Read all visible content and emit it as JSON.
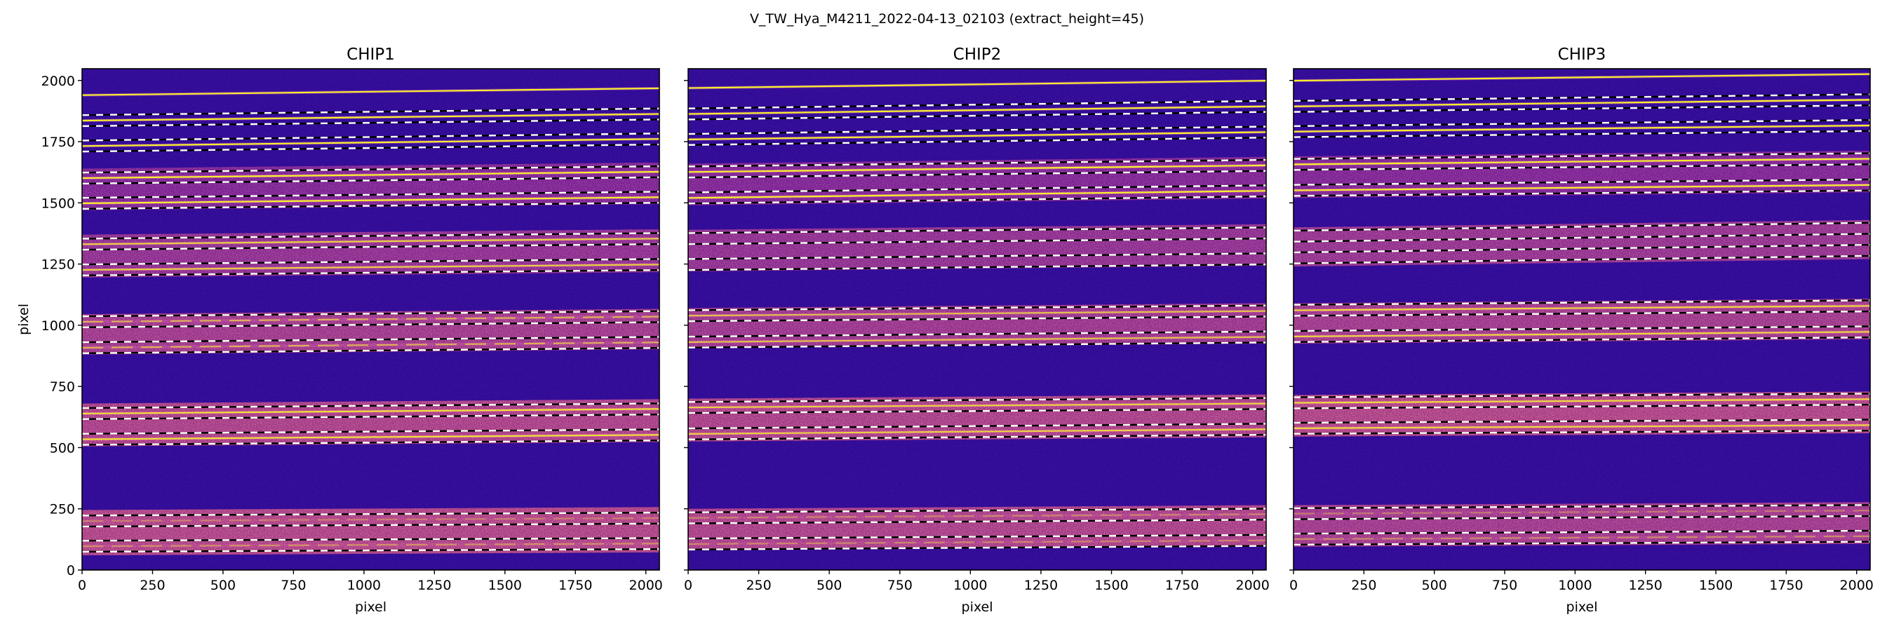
{
  "suptitle": "V_TW_Hya_M4211_2022-04-13_02103  (extract_height=45)",
  "chart_data": [
    {
      "type": "heatmap",
      "title": "CHIP1",
      "xlabel": "pixel",
      "ylabel": "pixel",
      "xlim": [
        0,
        2048
      ],
      "ylim": [
        0,
        2048
      ],
      "xticks": [
        0,
        250,
        500,
        750,
        1000,
        1250,
        1500,
        1750,
        2000
      ],
      "yticks": [
        0,
        250,
        500,
        750,
        1000,
        1250,
        1500,
        1750,
        2000
      ],
      "extract_height": 45,
      "colormap": "plasma",
      "illuminated_bands": [
        {
          "y_left": [
            1470,
            1640
          ],
          "y_right": [
            1495,
            1665
          ],
          "level": 0.3
        },
        {
          "y_left": [
            1195,
            1370
          ],
          "y_right": [
            1217,
            1392
          ],
          "level": 0.45
        },
        {
          "y_left": [
            880,
            1045
          ],
          "y_right": [
            902,
            1067
          ],
          "level": 0.6
        },
        {
          "y_left": [
            505,
            680
          ],
          "y_right": [
            523,
            698
          ],
          "level": 0.7
        },
        {
          "y_left": [
            60,
            245
          ],
          "y_right": [
            72,
            257
          ],
          "level": 0.75
        }
      ],
      "traces": [
        {
          "y_left": 1940,
          "y_right": 1968,
          "brightness": 1.0,
          "extraction_limits": false
        },
        {
          "y_left": 1836,
          "y_right": 1863,
          "brightness": 1.0,
          "extraction_limits": true
        },
        {
          "y_left": 1732,
          "y_right": 1761,
          "brightness": 1.0,
          "extraction_limits": true
        },
        {
          "y_left": 1601,
          "y_right": 1627,
          "brightness": 1.0,
          "extraction_limits": true
        },
        {
          "y_left": 1498,
          "y_right": 1523,
          "brightness": 1.0,
          "extraction_limits": true
        },
        {
          "y_left": 1331,
          "y_right": 1354,
          "brightness": 0.8,
          "extraction_limits": true
        },
        {
          "y_left": 1226,
          "y_right": 1248,
          "brightness": 0.8,
          "extraction_limits": true
        },
        {
          "y_left": 1014,
          "y_right": 1035,
          "brightness": 0.6,
          "extraction_limits": true
        },
        {
          "y_left": 908,
          "y_right": 930,
          "brightness": 0.6,
          "extraction_limits": true
        },
        {
          "y_left": 639,
          "y_right": 658,
          "brightness": 0.9,
          "extraction_limits": true
        },
        {
          "y_left": 534,
          "y_right": 552,
          "brightness": 0.9,
          "extraction_limits": true
        },
        {
          "y_left": 200,
          "y_right": 212,
          "brightness": 0.3,
          "extraction_limits": true
        },
        {
          "y_left": 97,
          "y_right": 108,
          "brightness": 0.4,
          "extraction_limits": true
        }
      ]
    },
    {
      "type": "heatmap",
      "title": "CHIP2",
      "xlabel": "pixel",
      "ylabel": "",
      "xlim": [
        0,
        2048
      ],
      "ylim": [
        0,
        2048
      ],
      "xticks": [
        0,
        250,
        500,
        750,
        1000,
        1250,
        1500,
        1750,
        2000
      ],
      "yticks": [
        0,
        250,
        500,
        750,
        1000,
        1250,
        1500,
        1750,
        2000
      ],
      "extract_height": 45,
      "colormap": "plasma",
      "illuminated_bands": [
        {
          "y_left": [
            1490,
            1660
          ],
          "y_right": [
            1518,
            1688
          ],
          "level": 0.3
        },
        {
          "y_left": [
            1220,
            1390
          ],
          "y_right": [
            1243,
            1413
          ],
          "level": 0.45
        },
        {
          "y_left": [
            905,
            1070
          ],
          "y_right": [
            925,
            1090
          ],
          "level": 0.55
        },
        {
          "y_left": [
            525,
            700
          ],
          "y_right": [
            542,
            717
          ],
          "level": 0.7
        },
        {
          "y_left": [
            80,
            250
          ],
          "y_right": [
            95,
            265
          ],
          "level": 0.7
        }
      ],
      "traces": [
        {
          "y_left": 1969,
          "y_right": 1999,
          "brightness": 1.0,
          "extraction_limits": false
        },
        {
          "y_left": 1863,
          "y_right": 1894,
          "brightness": 1.0,
          "extraction_limits": true
        },
        {
          "y_left": 1759,
          "y_right": 1789,
          "brightness": 1.0,
          "extraction_limits": true
        },
        {
          "y_left": 1626,
          "y_right": 1653,
          "brightness": 1.0,
          "extraction_limits": true
        },
        {
          "y_left": 1520,
          "y_right": 1549,
          "brightness": 1.0,
          "extraction_limits": true
        },
        {
          "y_left": 1354,
          "y_right": 1377,
          "brightness": 0.0,
          "extraction_limits": true
        },
        {
          "y_left": 1248,
          "y_right": 1271,
          "brightness": 0.0,
          "extraction_limits": true
        },
        {
          "y_left": 1039,
          "y_right": 1058,
          "brightness": 0.7,
          "extraction_limits": true
        },
        {
          "y_left": 931,
          "y_right": 952,
          "brightness": 0.7,
          "extraction_limits": true
        },
        {
          "y_left": 664,
          "y_right": 680,
          "brightness": 0.8,
          "extraction_limits": true
        },
        {
          "y_left": 556,
          "y_right": 575,
          "brightness": 0.8,
          "extraction_limits": true
        },
        {
          "y_left": 213,
          "y_right": 228,
          "brightness": 0.35,
          "extraction_limits": true
        },
        {
          "y_left": 106,
          "y_right": 121,
          "brightness": 0.35,
          "extraction_limits": true
        }
      ]
    },
    {
      "type": "heatmap",
      "title": "CHIP3",
      "xlabel": "pixel",
      "ylabel": "",
      "xlim": [
        0,
        2048
      ],
      "ylim": [
        0,
        2048
      ],
      "xticks": [
        0,
        250,
        500,
        750,
        1000,
        1250,
        1500,
        1750,
        2000
      ],
      "yticks": [
        0,
        250,
        500,
        750,
        1000,
        1250,
        1500,
        1750,
        2000
      ],
      "extract_height": 45,
      "colormap": "plasma",
      "illuminated_bands": [
        {
          "y_left": [
            1520,
            1690
          ],
          "y_right": [
            1543,
            1713
          ],
          "level": 0.3
        },
        {
          "y_left": [
            1240,
            1400
          ],
          "y_right": [
            1270,
            1430
          ],
          "level": 0.5
        },
        {
          "y_left": [
            925,
            1090
          ],
          "y_right": [
            943,
            1108
          ],
          "level": 0.6
        },
        {
          "y_left": [
            545,
            715
          ],
          "y_right": [
            559,
            729
          ],
          "level": 0.75
        },
        {
          "y_left": [
            95,
            265
          ],
          "y_right": [
            107,
            277
          ],
          "level": 0.6
        }
      ],
      "traces": [
        {
          "y_left": 1999,
          "y_right": 2026,
          "brightness": 1.0,
          "extraction_limits": false
        },
        {
          "y_left": 1894,
          "y_right": 1921,
          "brightness": 1.0,
          "extraction_limits": true
        },
        {
          "y_left": 1791,
          "y_right": 1816,
          "brightness": 1.0,
          "extraction_limits": true
        },
        {
          "y_left": 1657,
          "y_right": 1680,
          "brightness": 1.0,
          "extraction_limits": true
        },
        {
          "y_left": 1551,
          "y_right": 1573,
          "brightness": 1.0,
          "extraction_limits": true
        },
        {
          "y_left": 1364,
          "y_right": 1396,
          "brightness": 0.0,
          "extraction_limits": true
        },
        {
          "y_left": 1275,
          "y_right": 1306,
          "brightness": 0.0,
          "extraction_limits": true
        },
        {
          "y_left": 1061,
          "y_right": 1079,
          "brightness": 0.85,
          "extraction_limits": true
        },
        {
          "y_left": 954,
          "y_right": 973,
          "brightness": 0.85,
          "extraction_limits": true
        },
        {
          "y_left": 683,
          "y_right": 698,
          "brightness": 0.85,
          "extraction_limits": true
        },
        {
          "y_left": 579,
          "y_right": 592,
          "brightness": 0.85,
          "extraction_limits": true
        },
        {
          "y_left": 230,
          "y_right": 243,
          "brightness": 0.3,
          "extraction_limits": true
        },
        {
          "y_left": 126,
          "y_right": 138,
          "brightness": 0.4,
          "extraction_limits": true
        }
      ]
    }
  ],
  "colors": {
    "background": "#300b96",
    "band_low": "#5e0fa3",
    "band_high": "#c24a82",
    "speckle": "#f08a4b",
    "trace": "#f4f12a",
    "limit_dark": "#000000",
    "limit_light": "#ffffff"
  }
}
